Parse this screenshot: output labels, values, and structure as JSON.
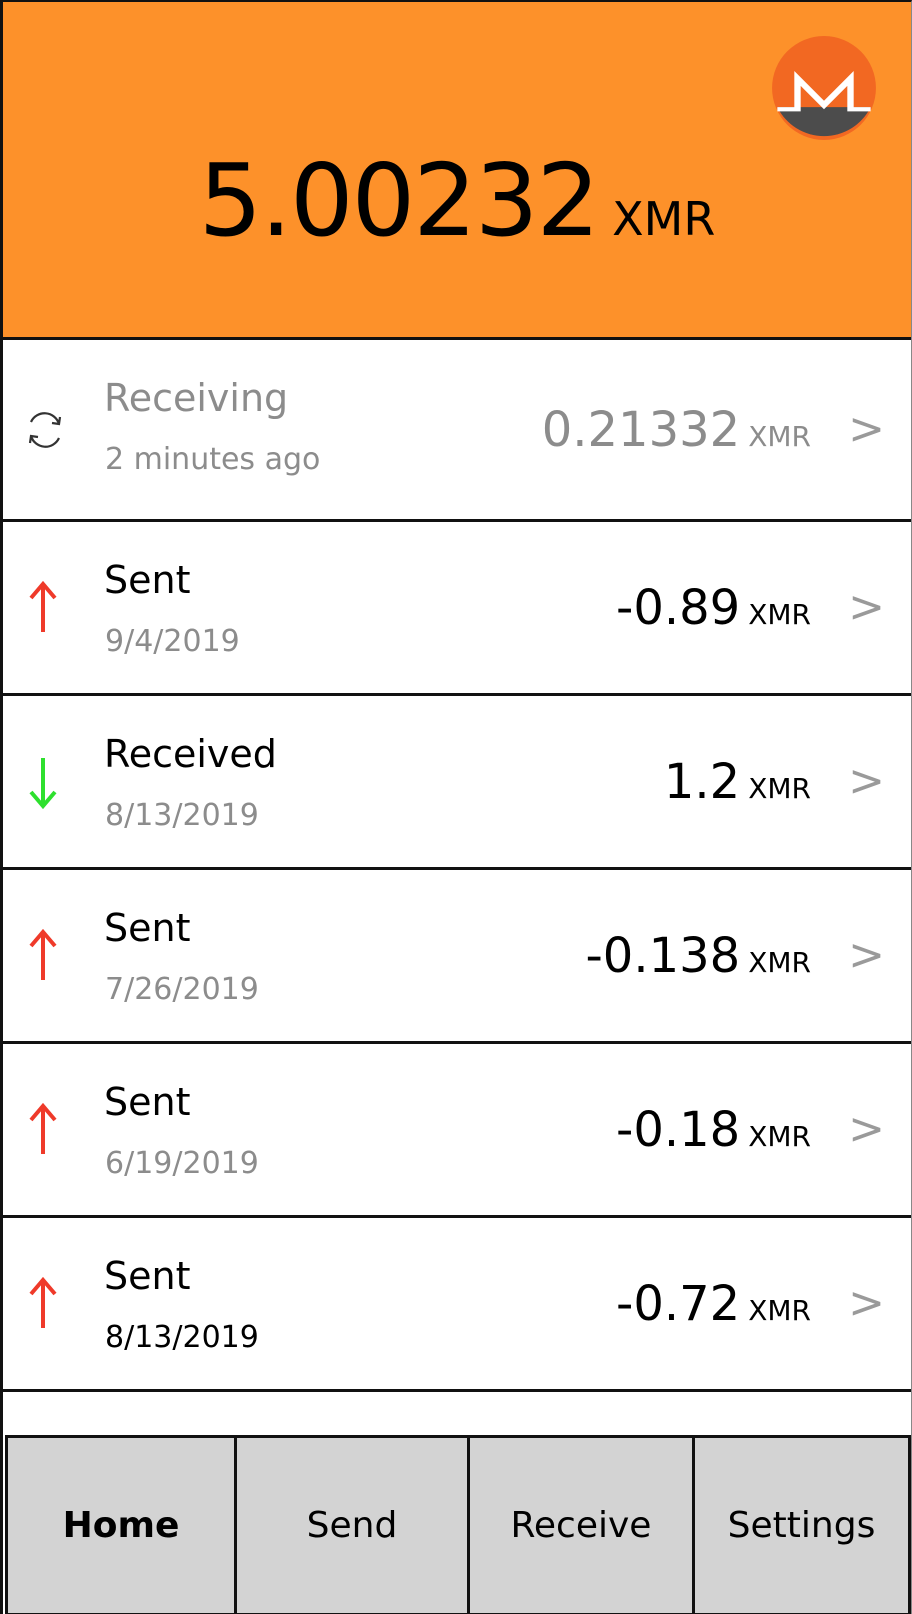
{
  "header": {
    "balance_value": "5.00232",
    "balance_unit": "XMR",
    "background_color": "#fd912a",
    "logo_icon": "monero-logo-icon"
  },
  "transactions": [
    {
      "status": "Receiving",
      "date": "2 minutes ago",
      "amount": "0.21332",
      "unit": "XMR",
      "icon": "sync-icon",
      "pending": true
    },
    {
      "status": "Sent",
      "date": "9/4/2019",
      "amount": "-0.89",
      "unit": "XMR",
      "icon": "arrow-up-icon",
      "color": "#ef3a2a"
    },
    {
      "status": "Received",
      "date": "8/13/2019",
      "amount": "1.2",
      "unit": "XMR",
      "icon": "arrow-down-icon",
      "color": "#2ee02e"
    },
    {
      "status": "Sent",
      "date": "7/26/2019",
      "amount": "-0.138",
      "unit": "XMR",
      "icon": "arrow-up-icon",
      "color": "#ef3a2a"
    },
    {
      "status": "Sent",
      "date": "6/19/2019",
      "amount": "-0.18",
      "unit": "XMR",
      "icon": "arrow-up-icon",
      "color": "#ef3a2a"
    },
    {
      "status": "Sent",
      "date": "8/13/2019",
      "amount": "-0.72",
      "unit": "XMR",
      "icon": "arrow-up-icon",
      "color": "#ef3a2a"
    }
  ],
  "chevron": ">",
  "nav": {
    "home": "Home",
    "send": "Send",
    "receive": "Receive",
    "settings": "Settings",
    "active": "home"
  }
}
